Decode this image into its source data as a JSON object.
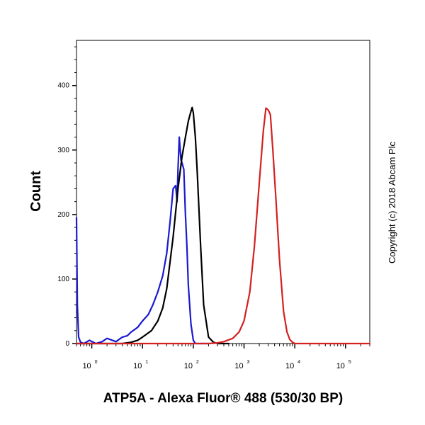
{
  "chart_data": {
    "type": "line",
    "title": "",
    "xlabel": "ATP5A - Alexa Fluor® 488 (530/30 BP)",
    "ylabel": "Count",
    "x_scale": "log",
    "xlim": [
      0.5,
      300000
    ],
    "ylim": [
      0,
      470
    ],
    "y_ticks": [
      "0",
      "100",
      "200",
      "300",
      "400"
    ],
    "x_ticks": [
      {
        "base": "10",
        "exp": "0"
      },
      {
        "base": "10",
        "exp": "1"
      },
      {
        "base": "10",
        "exp": "2"
      },
      {
        "base": "10",
        "exp": "3"
      },
      {
        "base": "10",
        "exp": "4"
      },
      {
        "base": "10",
        "exp": "5"
      }
    ],
    "grid": false,
    "series": [
      {
        "color": "#1a1ad0",
        "x": [
          0.5,
          0.52,
          0.55,
          0.6,
          0.7,
          0.9,
          1.2,
          1.6,
          2,
          3,
          4,
          5,
          6,
          8,
          10,
          13,
          16,
          20,
          25,
          30,
          35,
          40,
          45,
          48,
          50,
          53,
          57,
          60,
          65,
          70,
          75,
          80,
          90,
          100,
          110,
          130,
          160,
          200
        ],
        "y": [
          195,
          60,
          10,
          2,
          0,
          5,
          0,
          3,
          8,
          3,
          10,
          12,
          18,
          25,
          35,
          45,
          60,
          80,
          105,
          140,
          190,
          240,
          245,
          220,
          270,
          320,
          285,
          280,
          270,
          200,
          150,
          90,
          30,
          5,
          0,
          0,
          0,
          0
        ]
      },
      {
        "color": "#000000",
        "x": [
          0.5,
          1,
          2,
          4,
          6,
          8,
          10,
          15,
          20,
          25,
          30,
          40,
          50,
          60,
          70,
          80,
          90,
          95,
          100,
          110,
          120,
          140,
          160,
          200,
          250,
          300,
          500
        ],
        "y": [
          0,
          0,
          0,
          0,
          2,
          5,
          10,
          20,
          35,
          55,
          85,
          165,
          240,
          290,
          320,
          345,
          360,
          366,
          358,
          320,
          265,
          150,
          60,
          10,
          2,
          0,
          0
        ]
      },
      {
        "color": "#d42020",
        "x": [
          0.5,
          200,
          300,
          400,
          600,
          800,
          1000,
          1300,
          1600,
          2000,
          2400,
          2700,
          3000,
          3300,
          3700,
          4200,
          5000,
          6000,
          7000,
          8000,
          9000,
          10000,
          20000,
          300000
        ],
        "y": [
          0,
          0,
          1,
          3,
          8,
          18,
          35,
          80,
          150,
          250,
          330,
          365,
          362,
          355,
          300,
          230,
          130,
          50,
          18,
          6,
          2,
          0,
          0,
          0
        ]
      }
    ]
  },
  "copyright": "Copyright (c) 2018 Abcam Plc"
}
